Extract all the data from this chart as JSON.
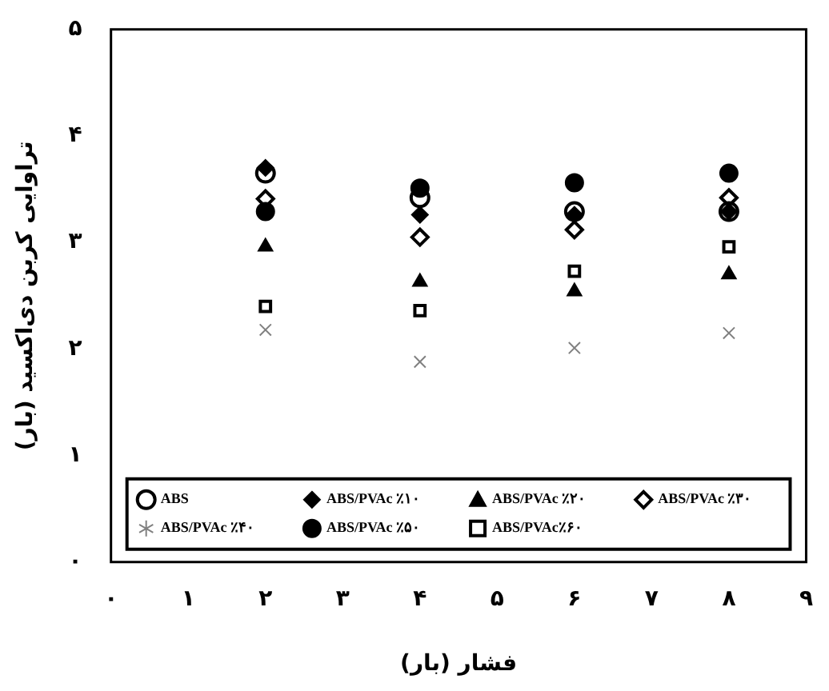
{
  "chart_data": {
    "type": "scatter",
    "xlabel": "فشار (بار)",
    "ylabel": "تراوایی کربن دی‌اکسید (بار)",
    "x": [
      2,
      4,
      6,
      8
    ],
    "xlim": [
      0,
      9
    ],
    "xticks": [
      {
        "value": 0,
        "label": "۰"
      },
      {
        "value": 1,
        "label": "۱"
      },
      {
        "value": 2,
        "label": "۲"
      },
      {
        "value": 3,
        "label": "۳"
      },
      {
        "value": 4,
        "label": "۴"
      },
      {
        "value": 5,
        "label": "۵"
      },
      {
        "value": 6,
        "label": "۶"
      },
      {
        "value": 7,
        "label": "۷"
      },
      {
        "value": 8,
        "label": "۸"
      },
      {
        "value": 9,
        "label": "۹"
      }
    ],
    "ylim": [
      0,
      5
    ],
    "yticks": [
      {
        "value": 0,
        "label": "۰"
      },
      {
        "value": 1,
        "label": "۱"
      },
      {
        "value": 2,
        "label": "۲"
      },
      {
        "value": 3,
        "label": "۳"
      },
      {
        "value": 4,
        "label": "۴"
      },
      {
        "value": 5,
        "label": "۵"
      }
    ],
    "grid": false,
    "legend": "bottom",
    "series": [
      {
        "name": "ABS",
        "color": "#000000",
        "marker": "circle",
        "values": [
          3.65,
          3.42,
          3.29,
          3.29
        ]
      },
      {
        "name": "ABS/PVAc ٪۱۰",
        "color": "#000000",
        "marker": "diamond",
        "values": [
          3.7,
          3.26,
          3.26,
          3.29
        ]
      },
      {
        "name": "ABS/PVAc ٪۲۰",
        "color": "#000000",
        "marker": "triangle",
        "values": [
          2.96,
          2.63,
          2.54,
          2.7
        ]
      },
      {
        "name": "ABS/PVAc ٪۳۰",
        "color": "#000000",
        "marker": "diamond",
        "values": [
          3.41,
          3.05,
          3.12,
          3.42
        ]
      },
      {
        "name": "ABS/PVAc ٪۴۰",
        "color": "#808080",
        "marker": "cross",
        "values": [
          2.18,
          1.88,
          2.01,
          2.15
        ]
      },
      {
        "name": "ABS/PVAc ٪۵۰",
        "color": "#000000",
        "marker": "circle",
        "values": [
          3.29,
          3.51,
          3.56,
          3.65
        ]
      },
      {
        "name": "ABS/PVAc٪۶۰",
        "color": "#000000",
        "marker": "square",
        "values": [
          2.4,
          2.36,
          2.73,
          2.96
        ]
      }
    ]
  }
}
